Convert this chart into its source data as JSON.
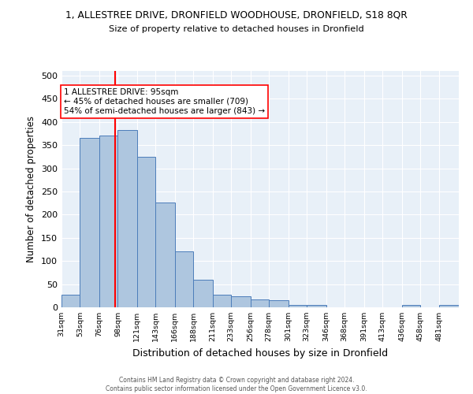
{
  "title": "1, ALLESTREE DRIVE, DRONFIELD WOODHOUSE, DRONFIELD, S18 8QR",
  "subtitle": "Size of property relative to detached houses in Dronfield",
  "xlabel": "Distribution of detached houses by size in Dronfield",
  "ylabel": "Number of detached properties",
  "footer_line1": "Contains HM Land Registry data © Crown copyright and database right 2024.",
  "footer_line2": "Contains public sector information licensed under the Open Government Licence v3.0.",
  "bin_labels": [
    "31sqm",
    "53sqm",
    "76sqm",
    "98sqm",
    "121sqm",
    "143sqm",
    "166sqm",
    "188sqm",
    "211sqm",
    "233sqm",
    "256sqm",
    "278sqm",
    "301sqm",
    "323sqm",
    "346sqm",
    "368sqm",
    "391sqm",
    "413sqm",
    "436sqm",
    "458sqm",
    "481sqm"
  ],
  "bar_values": [
    28,
    365,
    370,
    383,
    325,
    226,
    121,
    59,
    28,
    23,
    17,
    16,
    5,
    5,
    0,
    0,
    0,
    0,
    5,
    0,
    5
  ],
  "bar_color": "#aec6df",
  "bar_edge_color": "#4c7dba",
  "bg_color": "#e8f0f8",
  "grid_color": "#ffffff",
  "vline_x": 95,
  "vline_color": "red",
  "annotation_text": "1 ALLESTREE DRIVE: 95sqm\n← 45% of detached houses are smaller (709)\n54% of semi-detached houses are larger (843) →",
  "annotation_box_color": "white",
  "annotation_box_edge": "red",
  "ylim": [
    0,
    510
  ],
  "yticks": [
    0,
    50,
    100,
    150,
    200,
    250,
    300,
    350,
    400,
    450,
    500
  ],
  "bin_edges": [
    31,
    53,
    76,
    98,
    121,
    143,
    166,
    188,
    211,
    233,
    256,
    278,
    301,
    323,
    346,
    368,
    391,
    413,
    436,
    458,
    481,
    504
  ]
}
